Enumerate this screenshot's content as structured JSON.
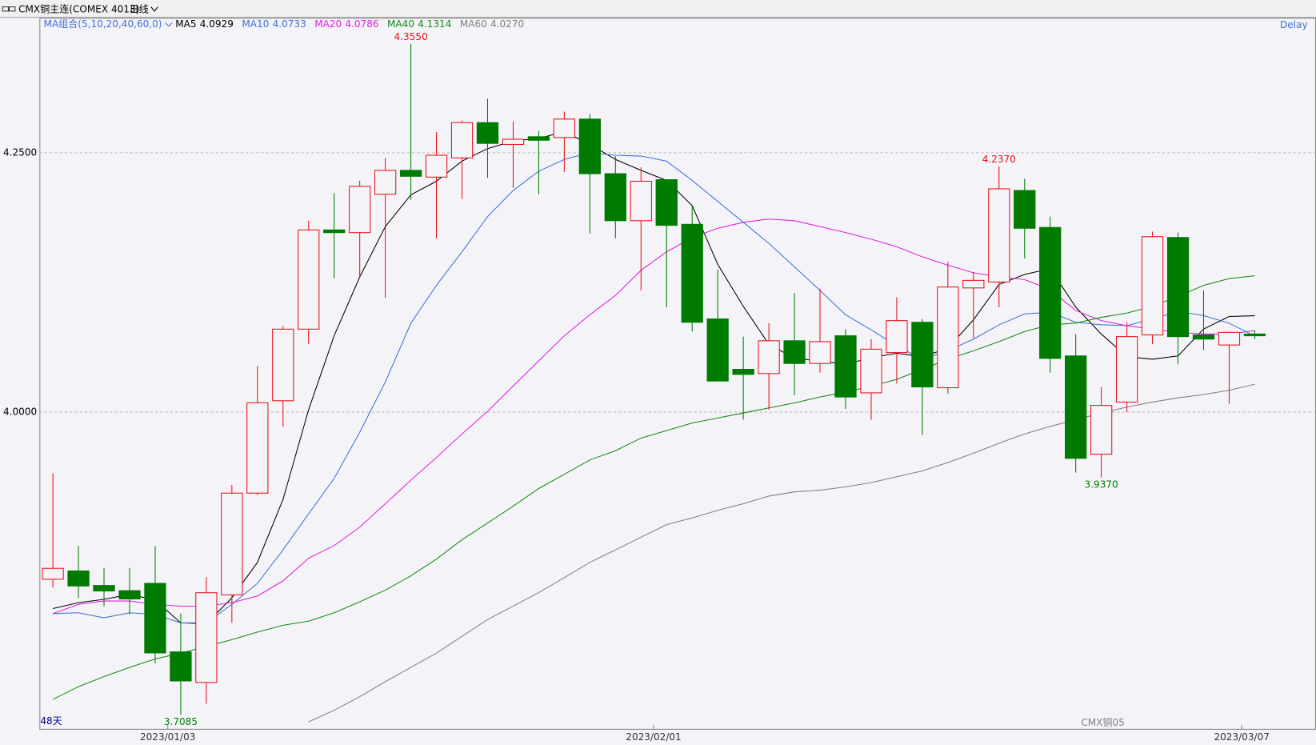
{
  "header": {
    "symbol": "CMX铜主连(COMEX 4013)",
    "period": "日线"
  },
  "chart_data": {
    "type": "candlestick",
    "categories": [
      null,
      null,
      null,
      null,
      "2023/01/03",
      null,
      null,
      null,
      null,
      null,
      null,
      null,
      null,
      null,
      null,
      null,
      null,
      null,
      null,
      null,
      null,
      null,
      null,
      "2023/02/01",
      null,
      null,
      null,
      null,
      null,
      null,
      null,
      null,
      null,
      null,
      null,
      null,
      null,
      null,
      null,
      null,
      null,
      null,
      null,
      null,
      null,
      null,
      "2023/03/07",
      null
    ],
    "open": [
      3.839,
      3.847,
      3.833,
      3.828,
      3.835,
      3.769,
      3.7395,
      3.824,
      3.922,
      4.011,
      4.08,
      4.1756,
      4.173,
      4.21,
      4.233,
      4.2265,
      4.245,
      4.279,
      4.258,
      4.2654,
      4.2646,
      4.2824,
      4.2298,
      4.1845,
      4.224,
      4.181,
      4.0898,
      4.0413,
      4.0372,
      4.0688,
      4.0469,
      4.0736,
      4.0186,
      4.0574,
      4.0866,
      4.0235,
      4.1197,
      4.1254,
      4.2136,
      4.178,
      4.0542,
      3.9595,
      4.0097,
      4.0744,
      4.1683,
      4.0744,
      4.0647,
      4.0753
    ],
    "high": [
      3.941,
      3.871,
      3.85,
      3.85,
      3.871,
      3.806,
      3.841,
      3.93,
      4.0445,
      4.083,
      4.1845,
      4.211,
      4.223,
      4.245,
      4.355,
      4.27,
      4.281,
      4.302,
      4.28,
      4.271,
      4.2896,
      4.2872,
      4.2468,
      4.236,
      4.224,
      4.1998,
      4.1375,
      4.0728,
      4.0858,
      4.1149,
      4.119,
      4.08,
      4.0704,
      4.1108,
      4.0898,
      4.1448,
      4.1351,
      4.237,
      4.2249,
      4.1885,
      4.0752,
      4.0243,
      4.0866,
      4.174,
      4.1731,
      4.1173,
      4.0777,
      4.0785
    ],
    "low": [
      3.831,
      3.821,
      3.813,
      3.805,
      3.758,
      3.7085,
      3.719,
      3.797,
      3.92,
      3.986,
      4.0655,
      4.129,
      4.13,
      4.11,
      4.2047,
      4.1675,
      4.2055,
      4.2257,
      4.216,
      4.21,
      4.2314,
      4.1723,
      4.1675,
      4.1173,
      4.101,
      4.0777,
      4.03,
      3.9927,
      4.0024,
      4.0162,
      4.038,
      4.0032,
      3.9927,
      4.0275,
      3.9782,
      4.0178,
      4.0712,
      4.101,
      4.148,
      4.038,
      3.9417,
      3.937,
      4.0,
      4.0655,
      4.0461,
      4.0599,
      4.0081,
      4.0704
    ],
    "close": [
      3.8495,
      3.8325,
      3.8277,
      3.82,
      3.768,
      3.741,
      3.826,
      3.922,
      4.009,
      4.08,
      4.1756,
      4.173,
      4.2176,
      4.233,
      4.2273,
      4.2476,
      4.279,
      4.259,
      4.263,
      4.262,
      4.2824,
      4.2298,
      4.1845,
      4.2225,
      4.18,
      4.0866,
      4.03,
      4.0364,
      4.0688,
      4.0469,
      4.068,
      4.0146,
      4.0607,
      4.0882,
      4.0243,
      4.1206,
      4.127,
      4.2152,
      4.1772,
      4.0518,
      3.9555,
      4.0065,
      4.0728,
      4.1691,
      4.0728,
      4.0704,
      4.0769,
      4.0736
    ],
    "up_color": "#e8101a",
    "down_color": "#007a00",
    "ma_label": "MA组合(5,10,20,40,60,0)",
    "series": [
      {
        "name": "MA5",
        "color": "#000000",
        "latest": {
          "value": 4.0929,
          "label": "4.0929"
        },
        "values": [
          3.8107,
          3.8164,
          3.8196,
          3.8245,
          3.8188,
          3.797,
          3.7962,
          3.8212,
          3.8552,
          3.9159,
          4.0024,
          4.0736,
          4.1303,
          4.1788,
          4.2095,
          4.2225,
          4.2419,
          4.254,
          4.2613,
          4.2638,
          4.2702,
          4.2581,
          4.2435,
          4.233,
          4.2233,
          4.199,
          4.1424,
          4.102,
          4.0655,
          4.0518,
          4.0494,
          4.0461,
          4.0526,
          4.0567,
          4.0534,
          4.0615,
          4.089,
          4.123,
          4.1327,
          4.1384,
          4.1012,
          4.0753,
          4.0534,
          4.051,
          4.0542,
          4.0801,
          4.0922,
          4.0929
        ]
      },
      {
        "name": "MA10",
        "color": "#3f6fd8",
        "latest": {
          "value": 4.0733,
          "label": "4.0733"
        },
        "values": [
          3.8059,
          3.8067,
          3.8018,
          3.8067,
          3.8051,
          3.797,
          3.797,
          3.8148,
          3.835,
          3.8673,
          3.9021,
          3.9361,
          3.9806,
          4.0291,
          4.0858,
          4.1222,
          4.1545,
          4.1885,
          4.2136,
          4.2322,
          4.2435,
          4.25,
          4.2476,
          4.2468,
          4.2419,
          4.2233,
          4.2031,
          4.1829,
          4.1626,
          4.14,
          4.1173,
          4.0939,
          4.0793,
          4.0639,
          4.051,
          4.0591,
          4.0704,
          4.0842,
          4.0947,
          4.0963,
          4.0866,
          4.0842,
          4.0834,
          4.0898,
          4.0971,
          4.0931,
          4.0858,
          4.0733
        ]
      },
      {
        "name": "MA20",
        "color": "#e020e0",
        "latest": {
          "value": 4.0786,
          "label": "4.0786"
        },
        "values": [
          3.8059,
          3.8148,
          3.818,
          3.818,
          3.8148,
          3.8131,
          3.8131,
          3.8164,
          3.8228,
          3.8374,
          3.8593,
          3.8714,
          3.8892,
          3.9118,
          3.9345,
          3.9563,
          3.979,
          4.0008,
          4.0251,
          4.0494,
          4.0736,
          4.0939,
          4.1125,
          4.1367,
          4.1545,
          4.1683,
          4.1772,
          4.1829,
          4.1861,
          4.1845,
          4.1788,
          4.1731,
          4.1667,
          4.1594,
          4.1497,
          4.1416,
          4.1343,
          4.1303,
          4.1278,
          4.1181,
          4.0979,
          4.0882,
          4.0833,
          4.0801,
          4.0769,
          4.0753,
          4.0753,
          4.0786
        ]
      },
      {
        "name": "MA40",
        "color": "#138a13",
        "latest": {
          "value": 4.1314,
          "label": "4.1314"
        },
        "values": [
          3.7233,
          3.7355,
          3.7452,
          3.7541,
          3.7622,
          3.7678,
          3.7743,
          3.7808,
          3.7881,
          3.7946,
          3.7986,
          3.8067,
          3.8172,
          3.8285,
          3.8423,
          3.8584,
          3.8771,
          3.8932,
          3.9094,
          3.9264,
          3.9402,
          3.9539,
          3.9628,
          3.975,
          3.9822,
          3.9895,
          3.9944,
          3.9992,
          4.0041,
          4.0089,
          4.0146,
          4.0194,
          4.0251,
          4.0316,
          4.0413,
          4.051,
          4.0591,
          4.068,
          4.0777,
          4.0842,
          4.0858,
          4.0914,
          4.0955,
          4.102,
          4.1117,
          4.1222,
          4.1287,
          4.1314
        ]
      },
      {
        "name": "MA60",
        "color": "#808080",
        "latest": {
          "value": 4.027,
          "label": "4.0270"
        },
        "values": [
          null,
          null,
          null,
          null,
          null,
          null,
          null,
          null,
          null,
          null,
          3.7015,
          3.7128,
          3.7258,
          3.7403,
          3.7541,
          3.7678,
          3.784,
          3.8002,
          3.8131,
          3.8261,
          3.8406,
          3.8552,
          3.8673,
          3.8795,
          3.8916,
          3.8981,
          3.9054,
          3.9118,
          3.9191,
          3.9232,
          3.9248,
          3.928,
          3.9321,
          3.9377,
          3.9434,
          3.9515,
          3.9604,
          3.9701,
          3.979,
          3.9863,
          3.9927,
          3.9992,
          4.0049,
          4.0097,
          4.0138,
          4.017,
          4.0211,
          4.027
        ]
      }
    ],
    "annotations": [
      {
        "value": 4.355,
        "label": "4.3550"
      },
      {
        "value": 4.237,
        "label": "4.2370"
      },
      {
        "value": 3.937,
        "label": "3.9370"
      },
      {
        "value": 3.7085,
        "label": "3.7085"
      }
    ],
    "ylim": [
      3.694,
      4.38
    ],
    "yticks": [
      {
        "value": 4.25,
        "label": "4.2500"
      },
      {
        "value": 4,
        "label": "4.0000"
      }
    ],
    "grid": true,
    "status": "Delay",
    "bar_count": "48天",
    "contract": "CMX铜05"
  }
}
